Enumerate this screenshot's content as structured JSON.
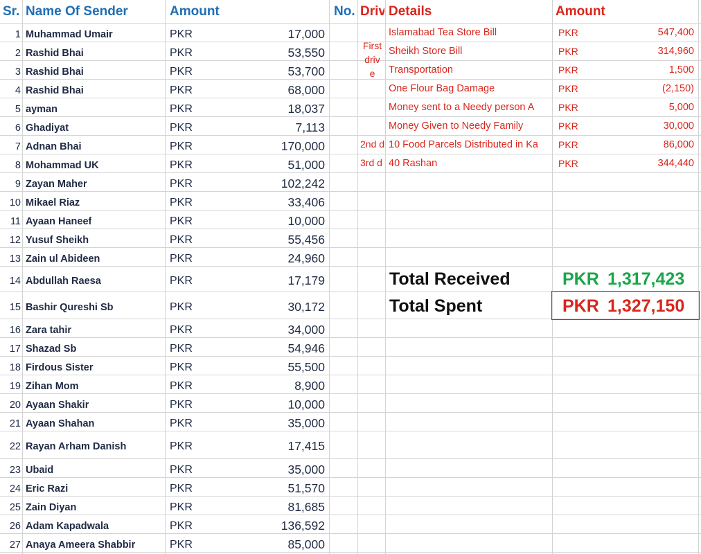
{
  "headers": {
    "sr": "Sr.",
    "name": "Name Of Sender",
    "amount": "Amount",
    "no": "No.",
    "drive": "Driv",
    "details": "Details",
    "expense_amount": "Amount"
  },
  "senders": [
    {
      "sr": "1",
      "name": "Muhammad Umair",
      "currency": "PKR",
      "amount": "17,000"
    },
    {
      "sr": "2",
      "name": "Rashid Bhai",
      "currency": "PKR",
      "amount": "53,550"
    },
    {
      "sr": "3",
      "name": "Rashid Bhai",
      "currency": "PKR",
      "amount": "53,700"
    },
    {
      "sr": "4",
      "name": "Rashid Bhai",
      "currency": "PKR",
      "amount": "68,000"
    },
    {
      "sr": "5",
      "name": "ayman",
      "currency": "PKR",
      "amount": "18,037"
    },
    {
      "sr": "6",
      "name": "Ghadiyat",
      "currency": "PKR",
      "amount": "7,113"
    },
    {
      "sr": "7",
      "name": "Adnan Bhai",
      "currency": "PKR",
      "amount": "170,000"
    },
    {
      "sr": "8",
      "name": "Mohammad UK",
      "currency": "PKR",
      "amount": "51,000"
    },
    {
      "sr": "9",
      "name": "Zayan Maher",
      "currency": "PKR",
      "amount": "102,242"
    },
    {
      "sr": "10",
      "name": "Mikael Riaz",
      "currency": "PKR",
      "amount": "33,406"
    },
    {
      "sr": "11",
      "name": "Ayaan Haneef",
      "currency": "PKR",
      "amount": "10,000"
    },
    {
      "sr": "12",
      "name": "Yusuf Sheikh",
      "currency": "PKR",
      "amount": "55,456"
    },
    {
      "sr": "13",
      "name": "Zain ul Abideen",
      "currency": "PKR",
      "amount": "24,960"
    },
    {
      "sr": "14",
      "name": "Abdullah Raesa",
      "currency": "PKR",
      "amount": "17,179"
    },
    {
      "sr": "15",
      "name": "Bashir Qureshi Sb",
      "currency": "PKR",
      "amount": "30,172"
    },
    {
      "sr": "16",
      "name": "Zara tahir",
      "currency": "PKR",
      "amount": "34,000"
    },
    {
      "sr": "17",
      "name": "Shazad Sb",
      "currency": "PKR",
      "amount": "54,946"
    },
    {
      "sr": "18",
      "name": "Firdous Sister",
      "currency": "PKR",
      "amount": "55,500"
    },
    {
      "sr": "19",
      "name": "Zihan Mom",
      "currency": "PKR",
      "amount": "8,900"
    },
    {
      "sr": "20",
      "name": "Ayaan Shakir",
      "currency": "PKR",
      "amount": "10,000"
    },
    {
      "sr": "21",
      "name": "Ayaan Shahan",
      "currency": "PKR",
      "amount": "35,000"
    },
    {
      "sr": "22",
      "name": "Rayan Arham Danish",
      "currency": "PKR",
      "amount": "17,415"
    },
    {
      "sr": "23",
      "name": "Ubaid",
      "currency": "PKR",
      "amount": "35,000"
    },
    {
      "sr": "24",
      "name": "Eric Razi",
      "currency": "PKR",
      "amount": "51,570"
    },
    {
      "sr": "25",
      "name": "Zain Diyan",
      "currency": "PKR",
      "amount": "81,685"
    },
    {
      "sr": "26",
      "name": "Adam Kapadwala",
      "currency": "PKR",
      "amount": "136,592"
    },
    {
      "sr": "27",
      "name": "Anaya Ameera Shabbir",
      "currency": "PKR",
      "amount": "85,000"
    }
  ],
  "drives": {
    "first_line1": "First",
    "first_line2": "driv",
    "first_line3": "e",
    "second": "2nd d",
    "third": "3rd d"
  },
  "expenses": [
    {
      "detail": "Islamabad Tea Store Bill",
      "currency": "PKR",
      "amount": "547,400"
    },
    {
      "detail": "Sheikh Store Bill",
      "currency": "PKR",
      "amount": "314,960"
    },
    {
      "detail": "Transportation",
      "currency": "PKR",
      "amount": "1,500"
    },
    {
      "detail": "One Flour Bag Damage",
      "currency": "PKR",
      "amount": "(2,150)"
    },
    {
      "detail": "Money sent to a Needy person A",
      "currency": "PKR",
      "amount": "5,000"
    },
    {
      "detail": "Money Given to Needy Family",
      "currency": "PKR",
      "amount": "30,000"
    },
    {
      "detail": "10 Food Parcels Distributed in Ka",
      "currency": "PKR",
      "amount": "86,000"
    },
    {
      "detail": "40 Rashan",
      "currency": "PKR",
      "amount": "344,440"
    }
  ],
  "totals": {
    "received_label": "Total Received",
    "received_currency": "PKR",
    "received_value": "1,317,423",
    "spent_label": "Total Spent",
    "spent_currency": "PKR",
    "spent_value": "1,327,150"
  },
  "colors": {
    "header_blue": "#1f6eb5",
    "expense_red": "#d9261c",
    "received_green": "#1aa64a"
  }
}
